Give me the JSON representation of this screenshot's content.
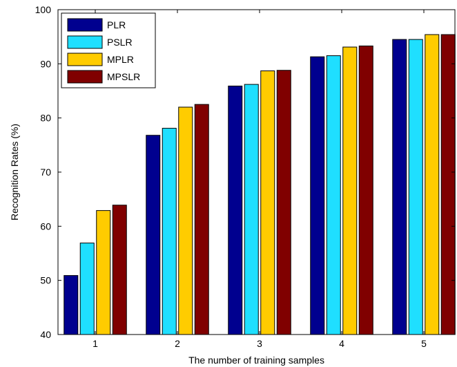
{
  "chart_data": {
    "type": "bar",
    "xlabel": "The number of training samples",
    "ylabel": "Recognition Rates (%)",
    "ylim": [
      40,
      100
    ],
    "yticks": [
      40,
      50,
      60,
      70,
      80,
      90,
      100
    ],
    "categories": [
      "1",
      "2",
      "3",
      "4",
      "5"
    ],
    "legend_position": "top-left",
    "grid": false,
    "series": [
      {
        "name": "PLR",
        "color": "#00008f",
        "values": [
          50.9,
          76.8,
          85.9,
          91.3,
          94.5
        ]
      },
      {
        "name": "PSLR",
        "color": "#1fdfff",
        "values": [
          56.9,
          78.1,
          86.2,
          91.5,
          94.5
        ]
      },
      {
        "name": "MPLR",
        "color": "#ffcc00",
        "values": [
          62.9,
          82.0,
          88.7,
          93.1,
          95.4
        ]
      },
      {
        "name": "MPSLR",
        "color": "#800000",
        "values": [
          63.9,
          82.5,
          88.8,
          93.3,
          95.4
        ]
      }
    ]
  }
}
